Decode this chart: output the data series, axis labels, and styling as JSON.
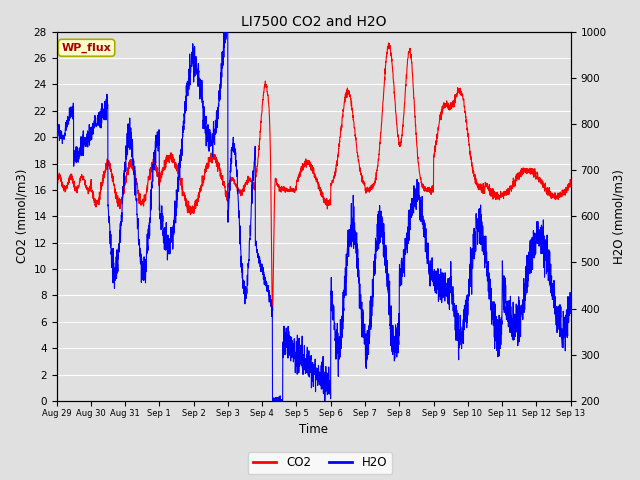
{
  "title": "LI7500 CO2 and H2O",
  "xlabel": "Time",
  "ylabel_left": "CO2 (mmol/m3)",
  "ylabel_right": "H2O (mmol/m3)",
  "ylim_left": [
    0,
    28
  ],
  "ylim_right": [
    200,
    1000
  ],
  "yticks_left": [
    0,
    2,
    4,
    6,
    8,
    10,
    12,
    14,
    16,
    18,
    20,
    22,
    24,
    26,
    28
  ],
  "yticks_right": [
    200,
    300,
    400,
    500,
    600,
    700,
    800,
    900,
    1000
  ],
  "bg_color": "#e0e0e0",
  "plot_bg_color": "#e0e0e0",
  "grid_color": "white",
  "co2_color": "red",
  "h2o_color": "blue",
  "legend_box_color": "#ffffcc",
  "legend_box_edge": "#aaaa00",
  "annotation_text": "WP_flux",
  "annotation_color": "#aa0000",
  "tick_labels": [
    "Aug 29",
    "Aug 30",
    "Aug 31",
    "Sep 1",
    "Sep 2",
    "Sep 3",
    "Sep 4",
    "Sep 5",
    "Sep 6",
    "Sep 7",
    "Sep 8",
    "Sep 9",
    "Sep 10",
    "Sep 11",
    "Sep 12",
    "Sep 13"
  ]
}
